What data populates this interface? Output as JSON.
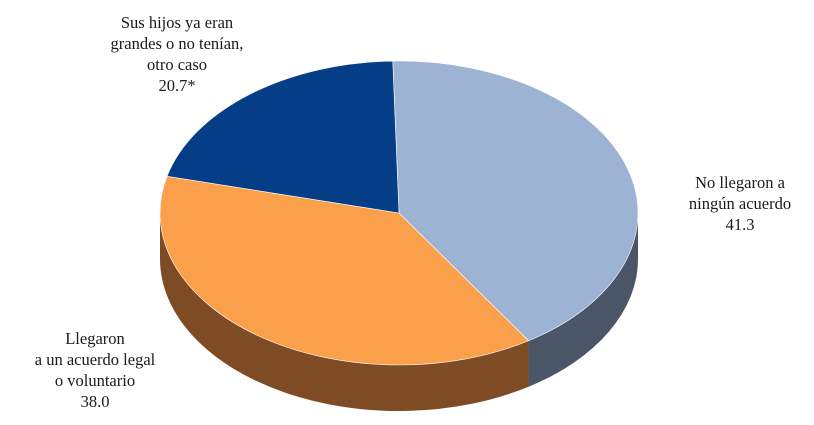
{
  "chart_data": {
    "type": "pie",
    "title": "",
    "style": "3d",
    "slices": [
      {
        "label_lines": [
          "No llegaron a",
          "ningún acuerdo"
        ],
        "value": 41.3,
        "value_label": "41.3",
        "color": "#9cb3d3",
        "side_color": "#4a5568"
      },
      {
        "label_lines": [
          "Llegaron",
          "a un acuerdo legal",
          "o voluntario"
        ],
        "value": 38.0,
        "value_label": "38.0",
        "color": "#fba04a",
        "side_color": "#7e4b24"
      },
      {
        "label_lines": [
          "Sus hijos ya eran",
          "grandes o no tenían,",
          "otro caso"
        ],
        "value": 20.7,
        "value_label": "20.7*",
        "color": "#053e87",
        "side_color": "#032552"
      }
    ]
  }
}
